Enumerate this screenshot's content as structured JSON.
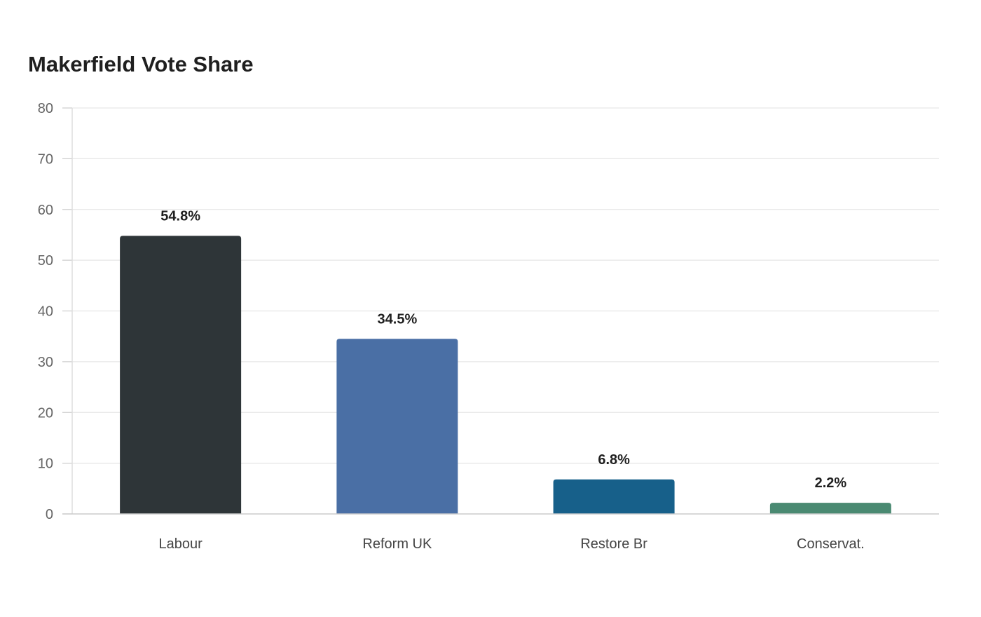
{
  "chart_data": {
    "type": "bar",
    "title": "Makerfield Vote Share",
    "categories": [
      "Labour",
      "Reform UK",
      "Restore Br",
      "Conservat."
    ],
    "values": [
      54.8,
      34.5,
      6.8,
      2.2
    ],
    "data_labels": [
      "54.8%",
      "34.5%",
      "6.8%",
      "2.2%"
    ],
    "colors": [
      "#2e3538",
      "#4a6fa5",
      "#17608a",
      "#4a8a72"
    ],
    "xlabel": "",
    "ylabel": "",
    "ylim": [
      0,
      80
    ],
    "yticks": [
      0,
      10,
      20,
      30,
      40,
      50,
      60,
      70,
      80
    ],
    "grid": true,
    "legend": "none"
  }
}
